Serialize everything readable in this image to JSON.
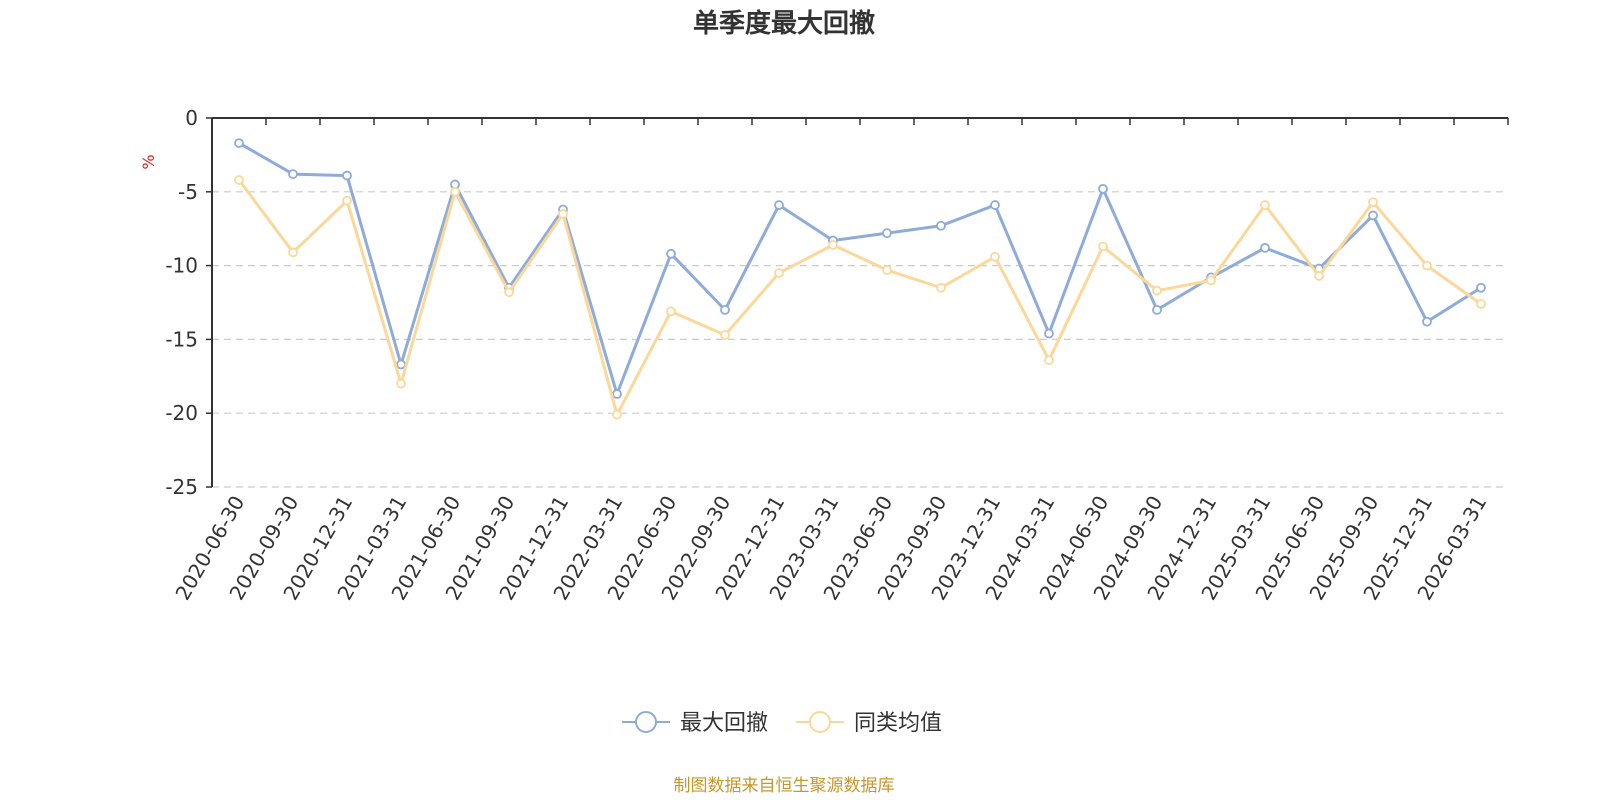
{
  "chart_data": {
    "type": "line",
    "title": "单季度最大回撤",
    "ylabel": "%",
    "ylim": [
      -25,
      0
    ],
    "yticks": [
      0,
      -5,
      -10,
      -15,
      -20,
      -25
    ],
    "grid": true,
    "legend_position": "bottom",
    "categories": [
      "2020-06-30",
      "2020-09-30",
      "2020-12-31",
      "2021-03-31",
      "2021-06-30",
      "2021-09-30",
      "2021-12-31",
      "2022-03-31",
      "2022-06-30",
      "2022-09-30",
      "2022-12-31",
      "2023-03-31",
      "2023-06-30",
      "2023-09-30",
      "2023-12-31",
      "2024-03-31",
      "2024-06-30",
      "2024-09-30",
      "2024-12-31",
      "2025-03-31",
      "2025-06-30",
      "2025-09-30",
      "2025-12-31",
      "2026-03-31"
    ],
    "series": [
      {
        "name": "最大回撤",
        "color": "#8eabd9",
        "values": [
          -1.7,
          -3.8,
          -3.9,
          -16.7,
          -4.5,
          -11.5,
          -6.2,
          -18.7,
          -9.2,
          -13.0,
          -5.9,
          -8.3,
          -7.8,
          -7.3,
          -5.9,
          -14.6,
          -4.8,
          -13.0,
          -10.8,
          -8.8,
          -10.2,
          -6.6,
          -13.8,
          -11.5
        ]
      },
      {
        "name": "同类均值",
        "color": "#fbd89a",
        "values": [
          -4.2,
          -9.1,
          -5.6,
          -18.0,
          -5.0,
          -11.8,
          -6.5,
          -20.1,
          -13.1,
          -14.7,
          -10.5,
          -8.6,
          -10.3,
          -11.5,
          -9.4,
          -16.4,
          -8.7,
          -11.7,
          -11.0,
          -5.9,
          -10.7,
          -5.7,
          -10.0,
          -12.6
        ]
      }
    ],
    "source_note": "制图数据来自恒生聚源数据库",
    "colors": {
      "axis": "#333333",
      "grid": "#cccccc",
      "unit": "#e02020",
      "source": "#c8962a"
    }
  }
}
